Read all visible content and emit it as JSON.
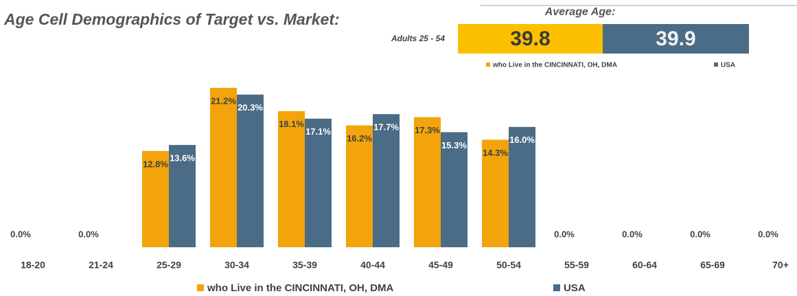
{
  "chart_data": {
    "type": "bar",
    "title": "Age Cell Demographics of Target vs. Market:",
    "average_age": {
      "label": "Average Age:",
      "group": "Adults 25 - 54",
      "values": [
        39.8,
        39.9
      ]
    },
    "categories": [
      "18-20",
      "21-24",
      "25-29",
      "30-34",
      "35-39",
      "40-44",
      "45-49",
      "50-54",
      "55-59",
      "60-64",
      "65-69",
      "70+"
    ],
    "series": [
      {
        "name": "who Live in the CINCINNATI, OH, DMA",
        "color": "#f2a40a",
        "values": [
          0,
          0,
          12.8,
          21.2,
          18.1,
          16.2,
          17.3,
          14.3,
          0,
          0,
          0,
          0
        ],
        "value_labels": [
          "0.0%",
          "0.0%",
          "12.8%",
          "21.2%",
          "18.1%",
          "16.2%",
          "17.3%",
          "14.3%",
          "0.0%",
          "0.0%",
          "0.0%",
          "0.0%"
        ]
      },
      {
        "name": "USA",
        "color": "#4a6c86",
        "values": [
          0,
          0,
          13.6,
          20.3,
          17.1,
          17.7,
          15.3,
          16.0,
          0,
          0,
          0,
          0
        ],
        "value_labels": [
          null,
          null,
          "13.6%",
          "20.3%",
          "17.1%",
          "17.7%",
          "15.3%",
          "16.0%",
          null,
          null,
          null,
          null
        ]
      }
    ],
    "box_colors": [
      "#fcc000",
      "#4a6c86"
    ]
  }
}
